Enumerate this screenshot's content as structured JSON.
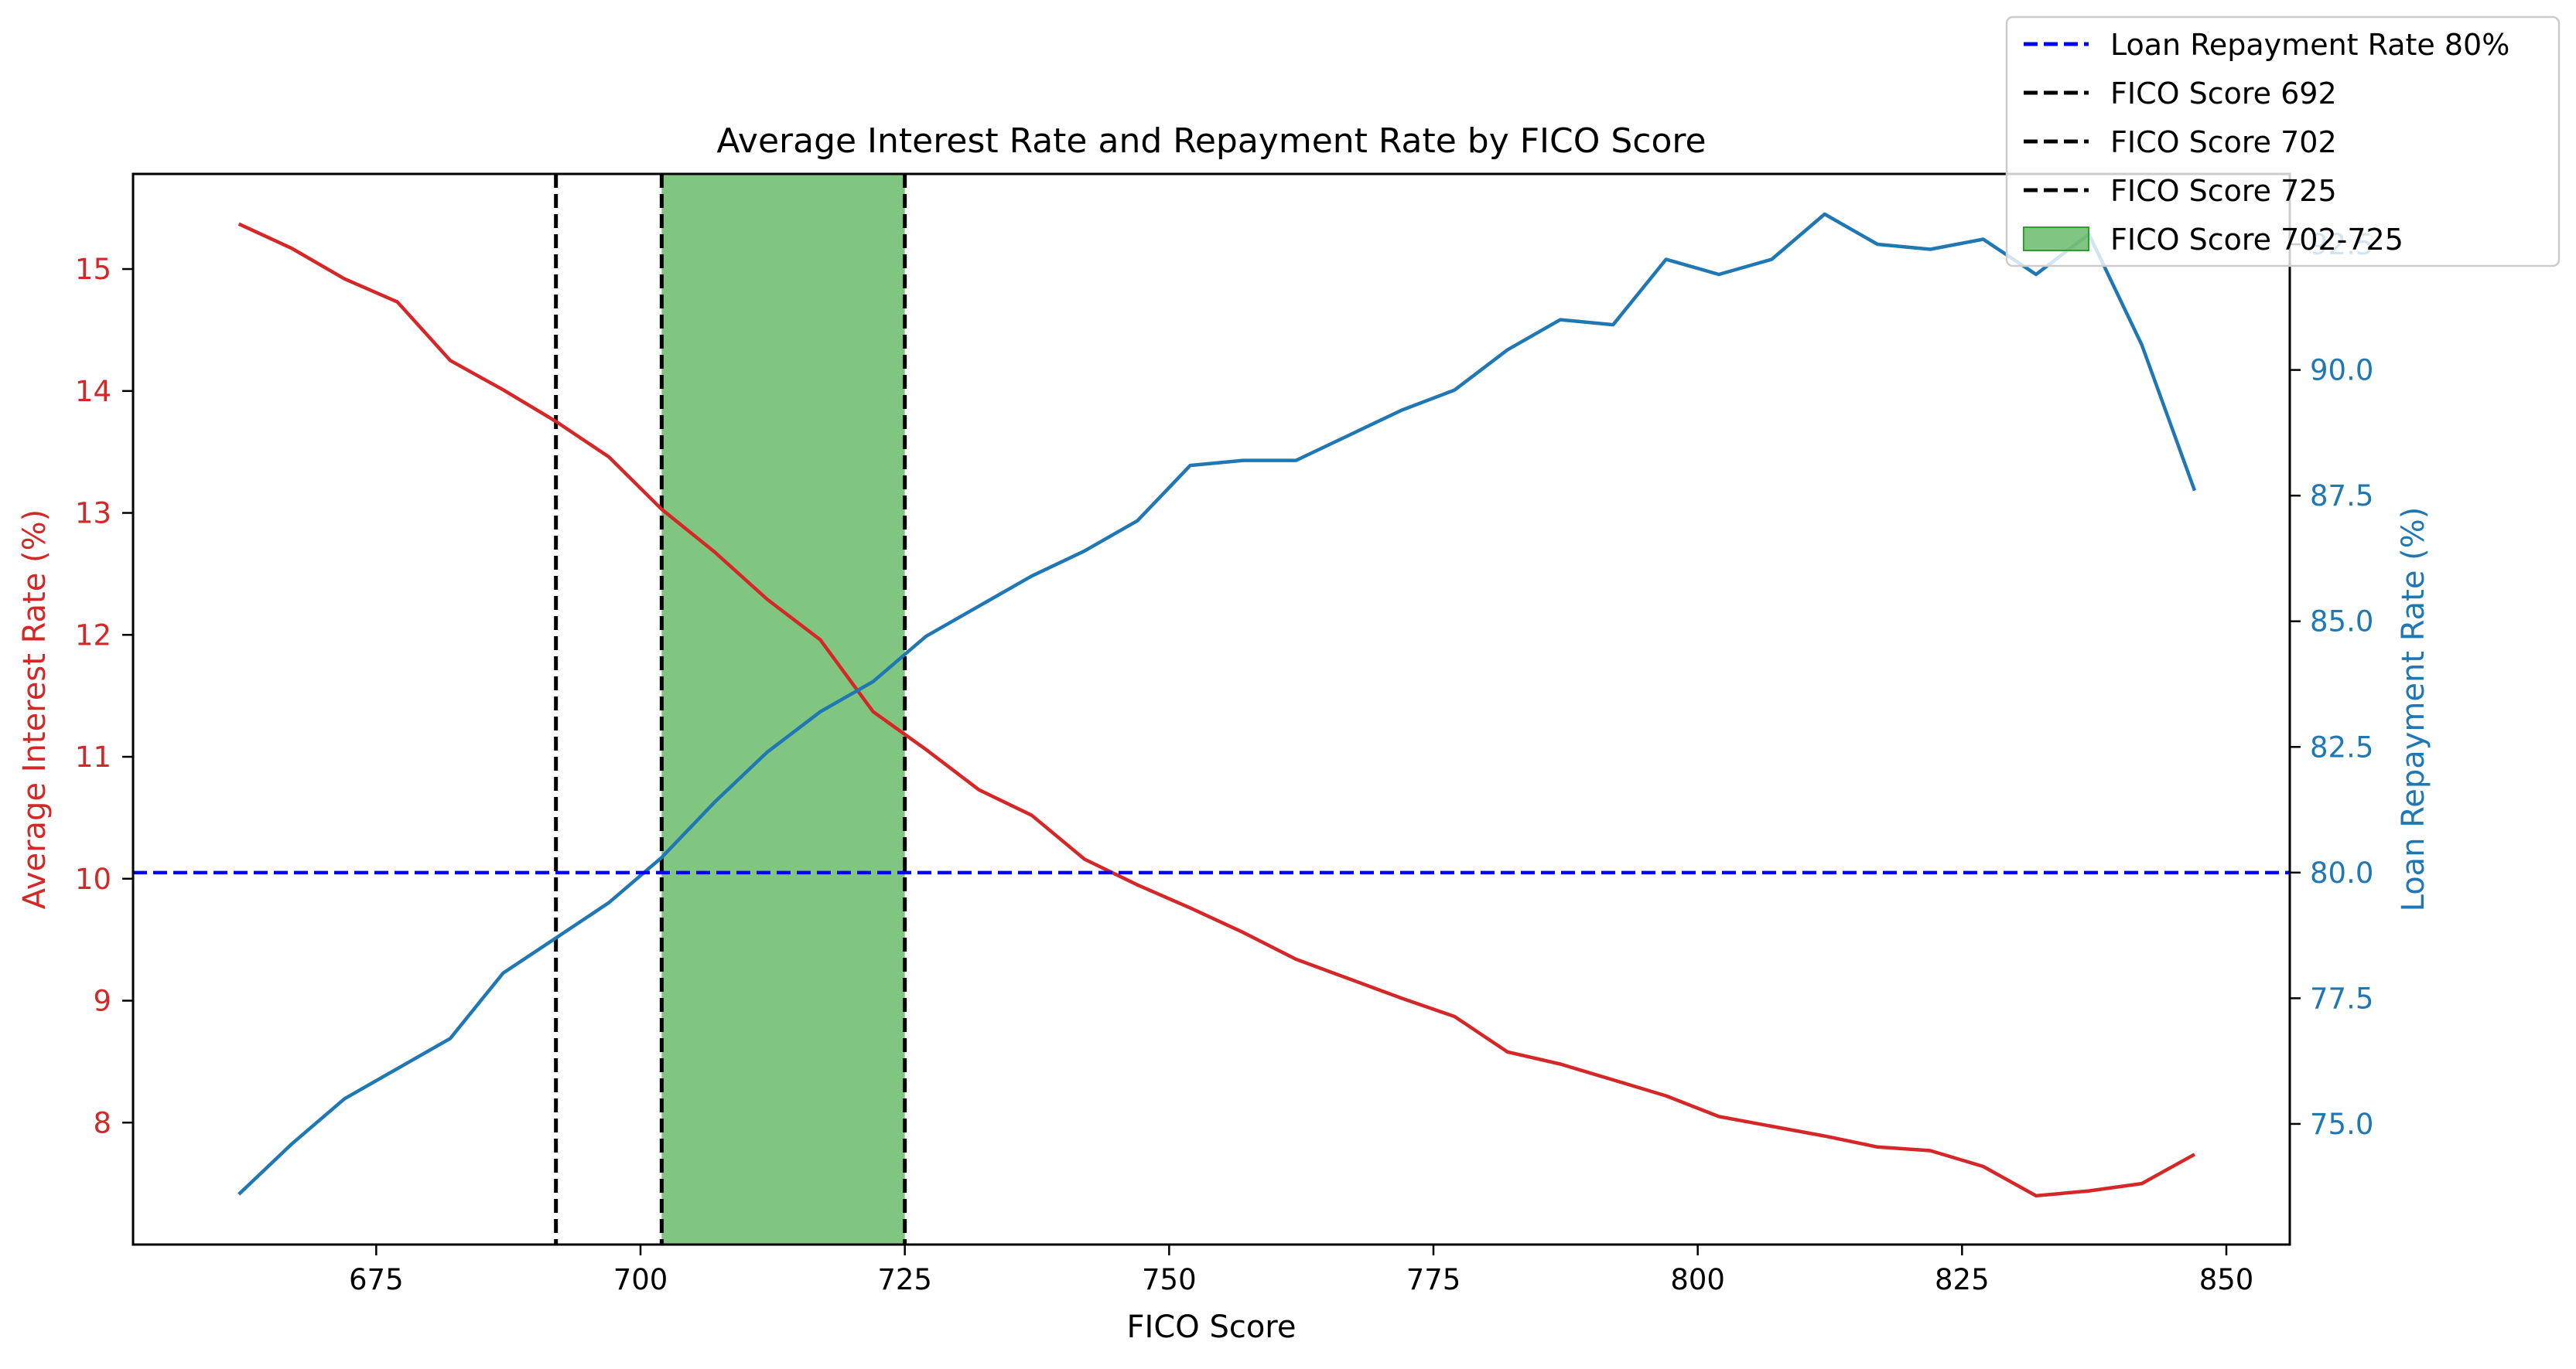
{
  "chart_data": {
    "type": "line",
    "title": "Average Interest Rate and Repayment Rate by FICO Score",
    "xlabel": "FICO Score",
    "ylabel_left": "Average Interest Rate (%)",
    "ylabel_right": "Loan Repayment Rate (%)",
    "xlim": [
      652,
      856
    ],
    "ylim_left": [
      7.0,
      15.78
    ],
    "ylim_right": [
      72.6,
      93.9
    ],
    "x_ticks": [
      "675",
      "700",
      "725",
      "750",
      "775",
      "800",
      "825",
      "850"
    ],
    "y_left_ticks": [
      "8",
      "9",
      "10",
      "11",
      "12",
      "13",
      "14",
      "15"
    ],
    "y_right_ticks": [
      "75.0",
      "77.5",
      "80.0",
      "82.5",
      "85.0",
      "87.5",
      "90.0",
      "92.5"
    ],
    "grid": false,
    "legend_position": "top-right",
    "colors": {
      "interest": "#d62728",
      "repayment": "#1f77b4",
      "threshold": "#0000ff",
      "vlines": "#000000",
      "band": "#2ca02c"
    },
    "x": [
      662,
      667,
      672,
      677,
      682,
      687,
      692,
      697,
      702,
      707,
      712,
      717,
      722,
      727,
      732,
      737,
      742,
      747,
      752,
      757,
      762,
      767,
      772,
      777,
      782,
      787,
      792,
      797,
      802,
      807,
      812,
      817,
      822,
      827,
      832,
      837,
      842,
      847
    ],
    "series": [
      {
        "name": "Average Interest Rate",
        "axis": "left",
        "values": [
          15.37,
          15.17,
          14.92,
          14.73,
          14.25,
          14.01,
          13.75,
          13.46,
          13.03,
          12.68,
          12.29,
          11.96,
          11.37,
          11.06,
          10.73,
          10.52,
          10.16,
          9.95,
          9.76,
          9.56,
          9.34,
          9.18,
          9.02,
          8.87,
          8.58,
          8.48,
          8.35,
          8.22,
          8.05,
          7.97,
          7.89,
          7.8,
          7.77,
          7.64,
          7.4,
          7.44,
          7.5,
          7.74
        ]
      },
      {
        "name": "Loan Repayment Rate",
        "axis": "right",
        "values": [
          73.6,
          74.6,
          75.5,
          76.1,
          76.7,
          78.0,
          78.7,
          79.4,
          80.3,
          81.4,
          82.4,
          83.2,
          83.8,
          84.7,
          85.3,
          85.9,
          86.4,
          87.0,
          88.1,
          88.2,
          88.2,
          88.7,
          89.2,
          89.6,
          90.4,
          91.0,
          90.9,
          92.2,
          91.9,
          92.2,
          93.1,
          92.5,
          92.4,
          92.6,
          91.9,
          92.7,
          90.5,
          87.6
        ]
      }
    ],
    "threshold": {
      "axis": "right",
      "value": 80.0
    },
    "vlines": [
      692,
      702,
      725
    ],
    "band": [
      702,
      725
    ],
    "legend": [
      {
        "label": "Loan Repayment Rate 80%",
        "kind": "line-dashed-blue"
      },
      {
        "label": "FICO Score 692",
        "kind": "line-dashed-black"
      },
      {
        "label": "FICO Score 702",
        "kind": "line-dashed-black"
      },
      {
        "label": "FICO Score 725",
        "kind": "line-dashed-black"
      },
      {
        "label": "FICO Score 702-725",
        "kind": "patch-green"
      }
    ]
  }
}
